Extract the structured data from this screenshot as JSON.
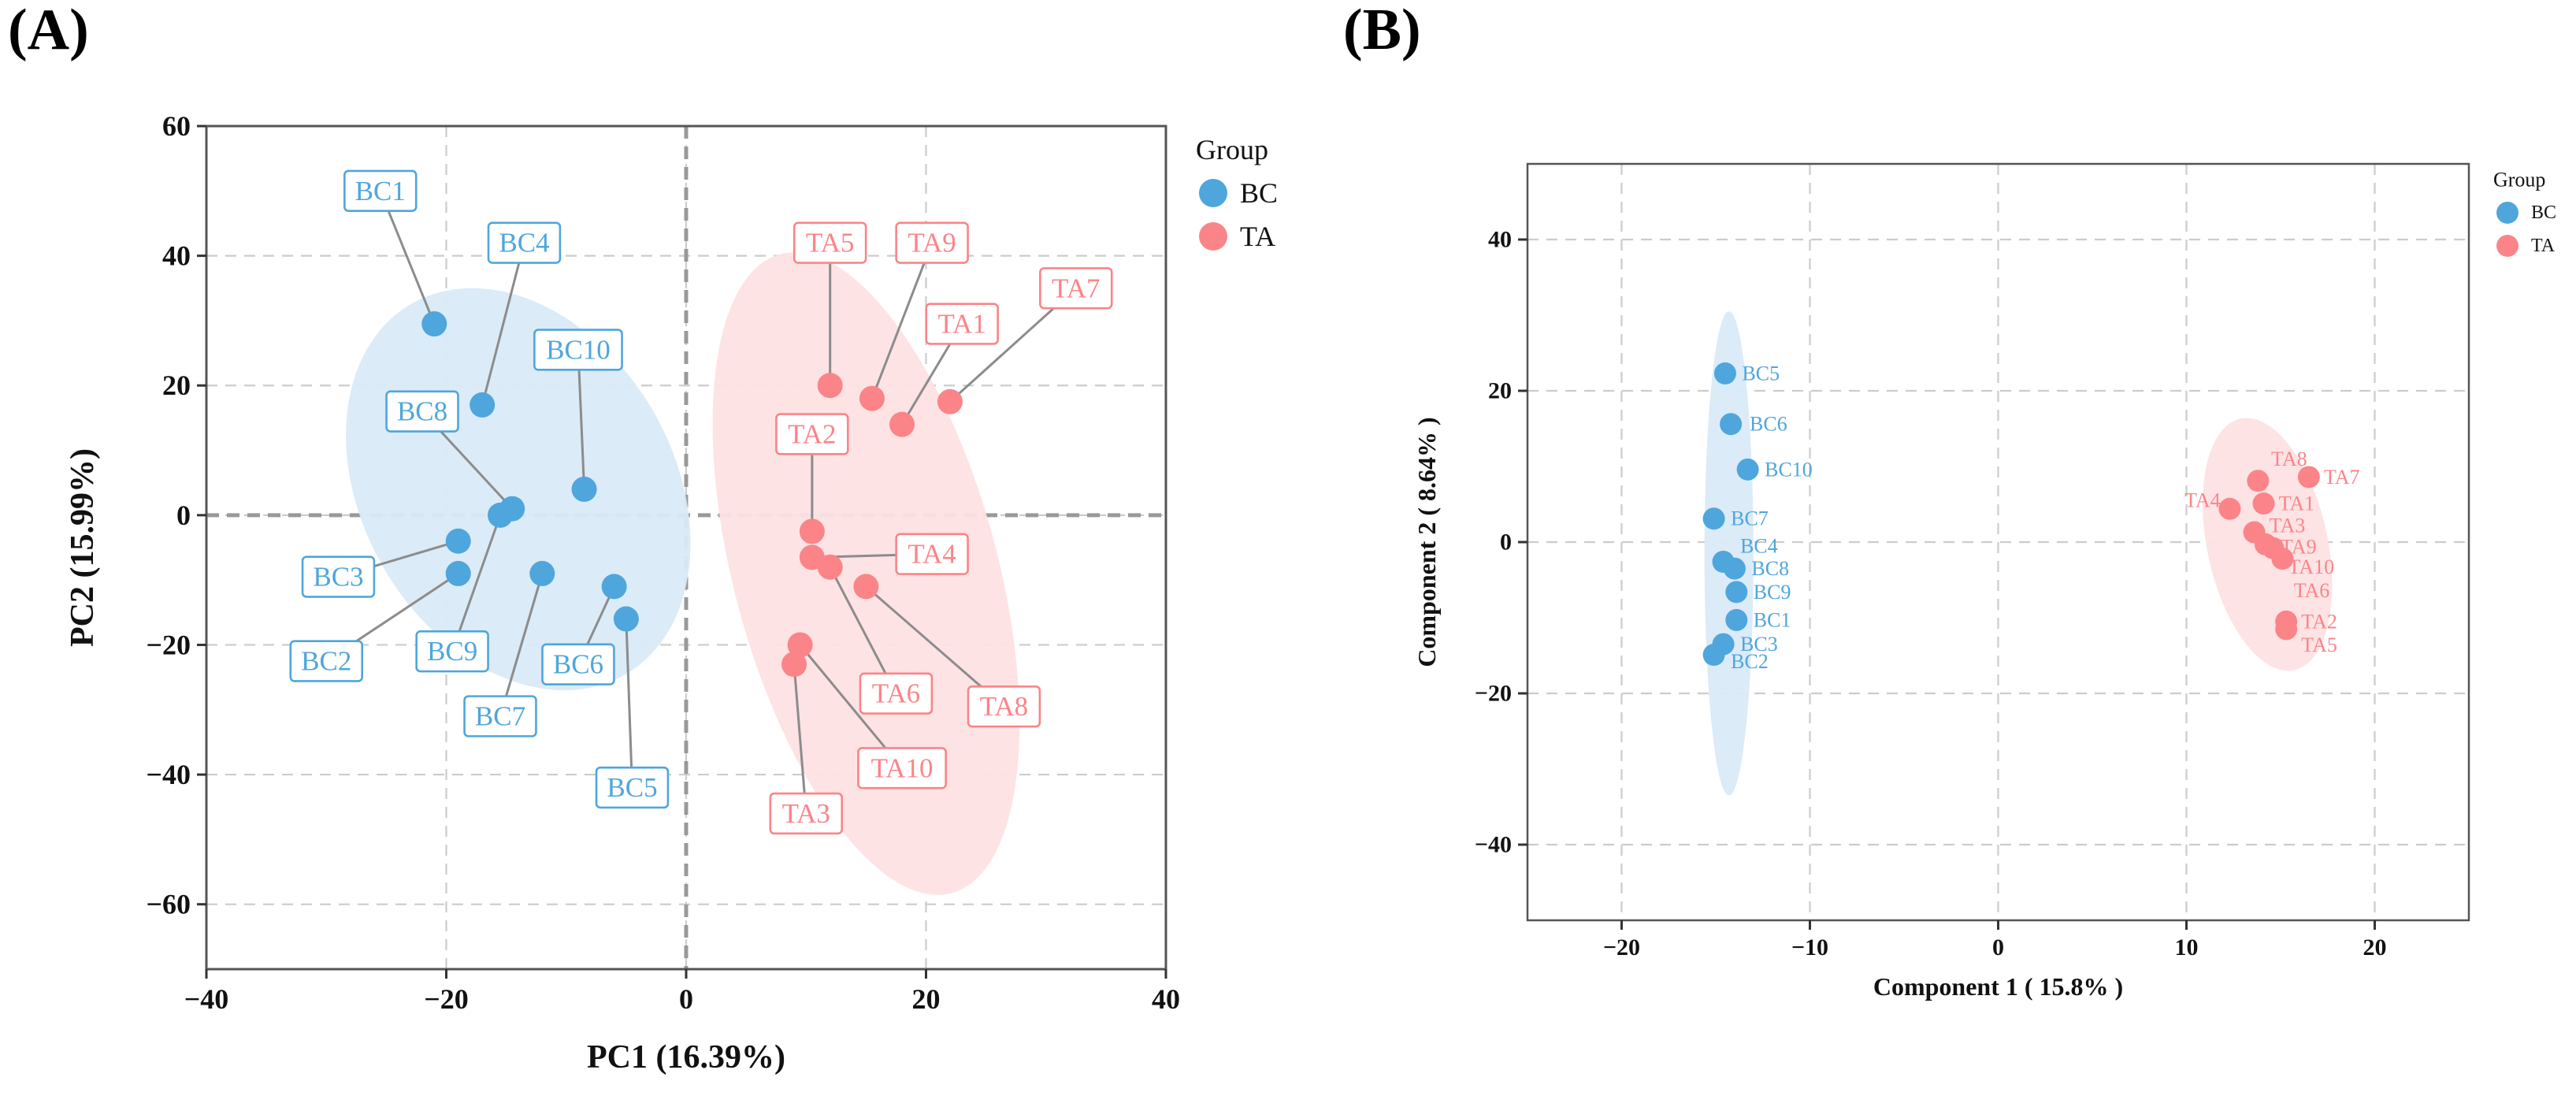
{
  "figure": {
    "panel_a_letter": "(A)",
    "panel_b_letter": "(B)"
  },
  "chart_data": [
    {
      "type": "scatter",
      "panel": "A",
      "xlabel": "PC1 (16.39%)",
      "ylabel": "PC2 (15.99%)",
      "xlim": [
        -40,
        40
      ],
      "ylim": [
        -70,
        60
      ],
      "xticks": [
        -40,
        -20,
        0,
        20,
        40
      ],
      "yticks": [
        -60,
        -40,
        -20,
        0,
        20,
        40,
        60
      ],
      "tick_labels_x": [
        "−40",
        "−20",
        "0",
        "20",
        "40"
      ],
      "tick_labels_y": [
        "−60",
        "−40",
        "−20",
        "0",
        "20",
        "40",
        "60"
      ],
      "grid": true,
      "zero_lines": true,
      "legend": {
        "title": "Group",
        "position": "right",
        "entries": [
          "BC",
          "TA"
        ]
      },
      "colors": {
        "BC": "#4ea6dc",
        "TA": "#fb8489",
        "BC_ellipse": "#d9eaf7",
        "TA_ellipse": "#fde2e3"
      },
      "series": [
        {
          "name": "BC",
          "points": [
            {
              "label": "BC1",
              "x": -21,
              "y": 29.5
            },
            {
              "label": "BC2",
              "x": -19,
              "y": -9
            },
            {
              "label": "BC3",
              "x": -19,
              "y": -4
            },
            {
              "label": "BC4",
              "x": -17,
              "y": 17
            },
            {
              "label": "BC5",
              "x": -5,
              "y": -16
            },
            {
              "label": "BC6",
              "x": -6,
              "y": -11
            },
            {
              "label": "BC7",
              "x": -12,
              "y": -9
            },
            {
              "label": "BC8",
              "x": -14.5,
              "y": 1
            },
            {
              "label": "BC9",
              "x": -15.5,
              "y": 0
            },
            {
              "label": "BC10",
              "x": -8.5,
              "y": 4
            }
          ],
          "ellipse": {
            "cx": -14,
            "cy": 4,
            "rx": 13,
            "ry": 33,
            "rotation_deg": -30
          }
        },
        {
          "name": "TA",
          "points": [
            {
              "label": "TA1",
              "x": 18,
              "y": 14
            },
            {
              "label": "TA2",
              "x": 10.5,
              "y": -2.5
            },
            {
              "label": "TA3",
              "x": 9,
              "y": -23
            },
            {
              "label": "TA4",
              "x": 10.5,
              "y": -6.5
            },
            {
              "label": "TA5",
              "x": 12,
              "y": 20
            },
            {
              "label": "TA6",
              "x": 12,
              "y": -8
            },
            {
              "label": "TA7",
              "x": 22,
              "y": 17.5
            },
            {
              "label": "TA8",
              "x": 15,
              "y": -11
            },
            {
              "label": "TA9",
              "x": 15.5,
              "y": 18
            },
            {
              "label": "TA10",
              "x": 9.5,
              "y": -20
            }
          ],
          "ellipse": {
            "cx": 15,
            "cy": -9,
            "rx": 11,
            "ry": 51,
            "rotation_deg": -15
          }
        }
      ],
      "annotations": [
        {
          "label": "BC1",
          "x": -25.5,
          "y": 50
        },
        {
          "label": "BC2",
          "x": -30,
          "y": -22.5
        },
        {
          "label": "BC3",
          "x": -29,
          "y": -9.5
        },
        {
          "label": "BC4",
          "x": -13.5,
          "y": 42
        },
        {
          "label": "BC5",
          "x": -4.5,
          "y": -42
        },
        {
          "label": "BC6",
          "x": -9,
          "y": -23
        },
        {
          "label": "BC7",
          "x": -15.5,
          "y": -31
        },
        {
          "label": "BC8",
          "x": -22,
          "y": 16
        },
        {
          "label": "BC9",
          "x": -19.5,
          "y": -21
        },
        {
          "label": "BC10",
          "x": -9,
          "y": 25.5
        },
        {
          "label": "TA1",
          "x": 23,
          "y": 29.5
        },
        {
          "label": "TA2",
          "x": 10.5,
          "y": 12.5
        },
        {
          "label": "TA3",
          "x": 10,
          "y": -46
        },
        {
          "label": "TA4",
          "x": 20.5,
          "y": -6
        },
        {
          "label": "TA5",
          "x": 12,
          "y": 42
        },
        {
          "label": "TA6",
          "x": 17.5,
          "y": -27.5
        },
        {
          "label": "TA7",
          "x": 32.5,
          "y": 35
        },
        {
          "label": "TA8",
          "x": 26.5,
          "y": -29.5
        },
        {
          "label": "TA9",
          "x": 20.5,
          "y": 42
        },
        {
          "label": "TA10",
          "x": 18,
          "y": -39
        }
      ]
    },
    {
      "type": "scatter",
      "panel": "B",
      "xlabel": "Component 1 ( 15.8% )",
      "ylabel": "Component 2 ( 8.64% )",
      "xlim": [
        -25,
        25
      ],
      "ylim": [
        -50,
        50
      ],
      "xticks": [
        -20,
        -10,
        0,
        10,
        20
      ],
      "yticks": [
        -40,
        -20,
        0,
        20,
        40
      ],
      "tick_labels_x": [
        "−20",
        "−10",
        "0",
        "10",
        "20"
      ],
      "tick_labels_y": [
        "−40",
        "−20",
        "0",
        "20",
        "40"
      ],
      "grid": true,
      "legend": {
        "title": "Group",
        "position": "right",
        "entries": [
          "BC",
          "TA"
        ]
      },
      "colors": {
        "BC": "#4ea6dc",
        "TA": "#fb8489",
        "BC_ellipse": "#d9eaf7",
        "TA_ellipse": "#fde2e3"
      },
      "series": [
        {
          "name": "BC",
          "points": [
            {
              "label": "BC5",
              "x": -14.5,
              "y": 22.3
            },
            {
              "label": "BC6",
              "x": -14.2,
              "y": 15.6
            },
            {
              "label": "BC10",
              "x": -13.3,
              "y": 9.6
            },
            {
              "label": "BC7",
              "x": -15.1,
              "y": 3.1
            },
            {
              "label": "BC4",
              "x": -14.6,
              "y": -2.6
            },
            {
              "label": "BC8",
              "x": -14,
              "y": -3.5
            },
            {
              "label": "BC9",
              "x": -13.9,
              "y": -6.6
            },
            {
              "label": "BC1",
              "x": -13.9,
              "y": -10.3
            },
            {
              "label": "BC3",
              "x": -14.6,
              "y": -13.5
            },
            {
              "label": "BC2",
              "x": -15.1,
              "y": -14.9
            }
          ],
          "ellipse": {
            "cx": -14.3,
            "cy": -1.5,
            "rx": 1.3,
            "ry": 32,
            "rotation_deg": 0
          }
        },
        {
          "name": "TA",
          "points": [
            {
              "label": "TA8",
              "x": 13.8,
              "y": 8.1
            },
            {
              "label": "TA7",
              "x": 16.5,
              "y": 8.6
            },
            {
              "label": "TA4",
              "x": 12.3,
              "y": 4.4
            },
            {
              "label": "TA1",
              "x": 14.1,
              "y": 5.1
            },
            {
              "label": "TA3",
              "x": 13.6,
              "y": 1.3
            },
            {
              "label": "TA9",
              "x": 14.2,
              "y": -0.3
            },
            {
              "label": "TA10",
              "x": 14.6,
              "y": -0.8
            },
            {
              "label": "TA6",
              "x": 15.1,
              "y": -2.2
            },
            {
              "label": "TA2",
              "x": 15.3,
              "y": -10.5
            },
            {
              "label": "TA5",
              "x": 15.3,
              "y": -11.5
            }
          ],
          "ellipse": {
            "cx": 14.3,
            "cy": -0.3,
            "rx": 3.2,
            "ry": 17,
            "rotation_deg": -12
          }
        }
      ],
      "annotations": [
        {
          "label": "BC5",
          "x": -13.6,
          "y": 22.3
        },
        {
          "label": "BC6",
          "x": -13.2,
          "y": 15.6
        },
        {
          "label": "BC10",
          "x": -12.4,
          "y": 9.6
        },
        {
          "label": "BC7",
          "x": -14.2,
          "y": 3.1
        },
        {
          "label": "BC4",
          "x": -13.7,
          "y": -0.5
        },
        {
          "label": "BC8",
          "x": -13.1,
          "y": -3.5
        },
        {
          "label": "BC9",
          "x": -13,
          "y": -6.6
        },
        {
          "label": "BC1",
          "x": -13,
          "y": -10.3
        },
        {
          "label": "BC3",
          "x": -13.7,
          "y": -13.5
        },
        {
          "label": "BC2",
          "x": -14.2,
          "y": -15.8
        },
        {
          "label": "TA8",
          "x": 14.5,
          "y": 11
        },
        {
          "label": "TA7",
          "x": 17.3,
          "y": 8.6
        },
        {
          "label": "TA4",
          "x": 9.9,
          "y": 5.5
        },
        {
          "label": "TA1",
          "x": 14.9,
          "y": 5.1
        },
        {
          "label": "TA3",
          "x": 14.4,
          "y": 2.2
        },
        {
          "label": "TA9",
          "x": 15,
          "y": -0.6
        },
        {
          "label": "TA10",
          "x": 15.4,
          "y": -3.3
        },
        {
          "label": "TA6",
          "x": 15.7,
          "y": -6.4
        },
        {
          "label": "TA2",
          "x": 16.1,
          "y": -10.5
        },
        {
          "label": "TA5",
          "x": 16.1,
          "y": -13.6
        }
      ]
    }
  ]
}
